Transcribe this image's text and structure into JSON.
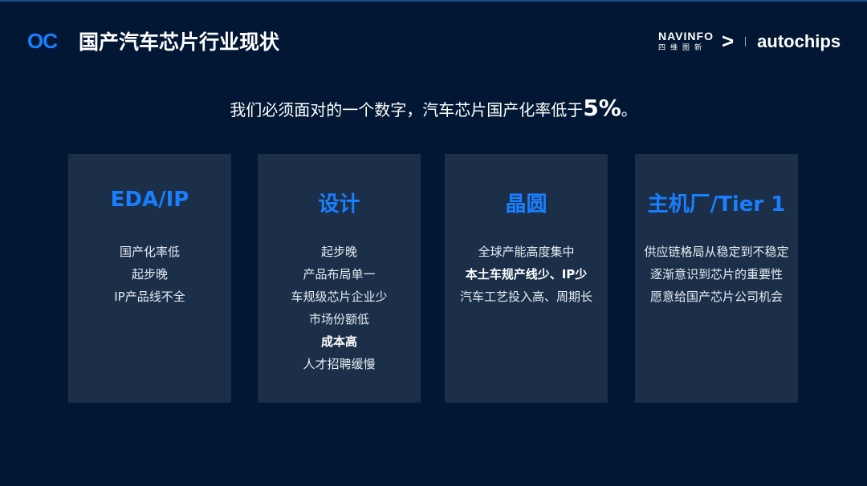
{
  "header": {
    "logo": "OC",
    "title": "国产汽车芯片行业现状",
    "brand1": "NAVINFO",
    "brand1_cn": "四维图新",
    "brand2": "autochips"
  },
  "headline": {
    "text": "我们必须面对的一个数字，汽车芯片国产化率低于",
    "value": "5%",
    "suffix": "。"
  },
  "cards": [
    {
      "title": "EDA/IP",
      "items": [
        {
          "t": "国产化率低"
        },
        {
          "t": "起步晚"
        },
        {
          "t": "IP产品线不全"
        }
      ]
    },
    {
      "title": "设计",
      "items": [
        {
          "t": "起步晚"
        },
        {
          "t": "产品布局单一"
        },
        {
          "t": "车规级芯片企业少"
        },
        {
          "t": "市场份额低"
        },
        {
          "t": "成本高",
          "bold": true
        },
        {
          "t": "人才招聘缓慢"
        }
      ]
    },
    {
      "title": "晶圆",
      "items": [
        {
          "t": "全球产能高度集中"
        },
        {
          "t": "本土车规产线少、IP少",
          "bold": true
        },
        {
          "t": "汽车工艺投入高、周期长"
        }
      ]
    },
    {
      "title": "主机厂/Tier 1",
      "items": [
        {
          "t": "供应链格局从稳定到不稳定"
        },
        {
          "t": "逐渐意识到芯片的重要性"
        },
        {
          "t": "愿意给国产芯片公司机会"
        }
      ]
    }
  ],
  "colors": {
    "background": "#011733",
    "card": "#1b2f49",
    "accent": "#1a7fff"
  }
}
